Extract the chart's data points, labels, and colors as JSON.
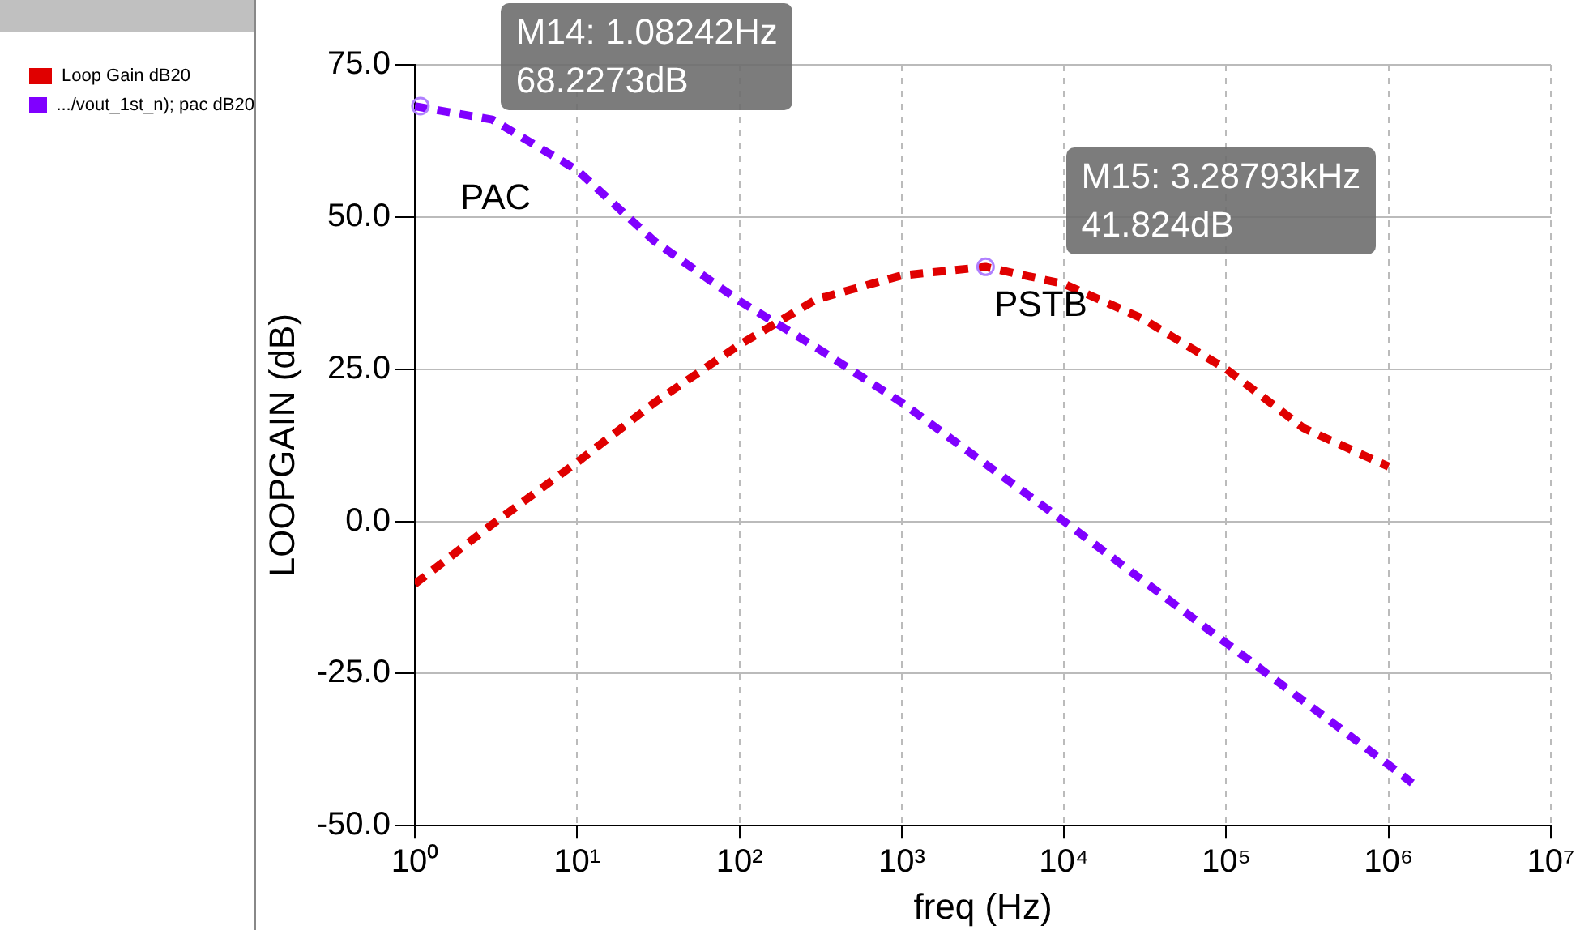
{
  "chart_data": {
    "type": "line",
    "xlabel": "freq (Hz)",
    "ylabel": "LOOPGAIN (dB)",
    "log": "x",
    "grid": true,
    "legend": "left",
    "line_style": "dashed",
    "marker": "none",
    "xlim": [
      1,
      10000000
    ],
    "xticks": [
      {
        "value": 1,
        "label": "10⁰"
      },
      {
        "value": 10,
        "label": "10¹"
      },
      {
        "value": 100,
        "label": "10²"
      },
      {
        "value": 1000,
        "label": "10³"
      },
      {
        "value": 10000,
        "label": "10⁴"
      },
      {
        "value": 100000,
        "label": "10⁵"
      },
      {
        "value": 1000000,
        "label": "10⁶"
      },
      {
        "value": 10000000,
        "label": "10⁷"
      }
    ],
    "ylim": [
      -50,
      75
    ],
    "yticks": [
      {
        "value": -50,
        "label": "-50.0"
      },
      {
        "value": -25,
        "label": "-25.0"
      },
      {
        "value": 0,
        "label": "0.0"
      },
      {
        "value": 25,
        "label": "25.0"
      },
      {
        "value": 50,
        "label": "50.0"
      },
      {
        "value": 75,
        "label": "75.0"
      }
    ],
    "series": [
      {
        "name": "Loop Gain dB20",
        "color": "#e00000",
        "x": [
          1,
          3,
          10,
          30,
          100,
          300,
          1000,
          3288,
          10000,
          30000,
          100000,
          300000,
          1000000
        ],
        "values": [
          -10.3,
          -0.5,
          9.7,
          19.5,
          29,
          36.5,
          40.4,
          41.8,
          39,
          33.4,
          25,
          15.3,
          9
        ]
      },
      {
        "name": ".../vout_1st_n); pac dB20",
        "color": "#8000ff",
        "x": [
          1,
          3,
          10,
          30,
          100,
          300,
          1000,
          10000,
          100000,
          1000000,
          1400000
        ],
        "values": [
          68.2,
          66,
          57.7,
          46,
          36.2,
          28.5,
          19.5,
          0,
          -20,
          -40,
          -43
        ]
      }
    ],
    "annotations": [
      {
        "text": "M14: 1.08242Hz\n68.2273dB",
        "x": 1.08242,
        "y": 68.2273
      },
      {
        "text": "M15: 3.28793kHz\n41.824dB",
        "x": 3287.93,
        "y": 41.824
      },
      "PAC",
      "PSTB"
    ]
  }
}
